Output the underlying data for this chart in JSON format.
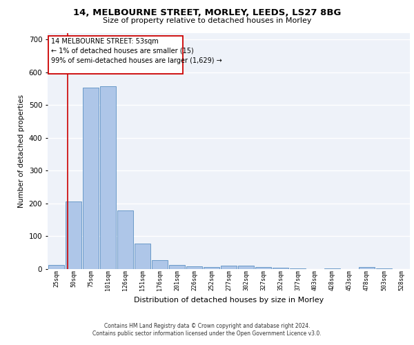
{
  "title1": "14, MELBOURNE STREET, MORLEY, LEEDS, LS27 8BG",
  "title2": "Size of property relative to detached houses in Morley",
  "xlabel": "Distribution of detached houses by size in Morley",
  "ylabel": "Number of detached properties",
  "categories": [
    "25sqm",
    "50sqm",
    "75sqm",
    "101sqm",
    "126sqm",
    "151sqm",
    "176sqm",
    "201sqm",
    "226sqm",
    "252sqm",
    "277sqm",
    "302sqm",
    "327sqm",
    "352sqm",
    "377sqm",
    "403sqm",
    "428sqm",
    "453sqm",
    "478sqm",
    "503sqm",
    "528sqm"
  ],
  "values": [
    12,
    205,
    553,
    558,
    178,
    78,
    28,
    12,
    8,
    6,
    10,
    10,
    6,
    4,
    2,
    0,
    2,
    0,
    6,
    2,
    0
  ],
  "bar_color": "#aec6e8",
  "bar_edge_color": "#5a8fc2",
  "background_color": "#eef2f9",
  "grid_color": "#ffffff",
  "annotation_box_color": "#ffffff",
  "annotation_box_edge": "#cc0000",
  "annotation_line1": "14 MELBOURNE STREET: 53sqm",
  "annotation_line2": "← 1% of detached houses are smaller (15)",
  "annotation_line3": "99% of semi-detached houses are larger (1,629) →",
  "ylim": [
    0,
    720
  ],
  "yticks": [
    0,
    100,
    200,
    300,
    400,
    500,
    600,
    700
  ],
  "footer1": "Contains HM Land Registry data © Crown copyright and database right 2024.",
  "footer2": "Contains public sector information licensed under the Open Government Licence v3.0."
}
